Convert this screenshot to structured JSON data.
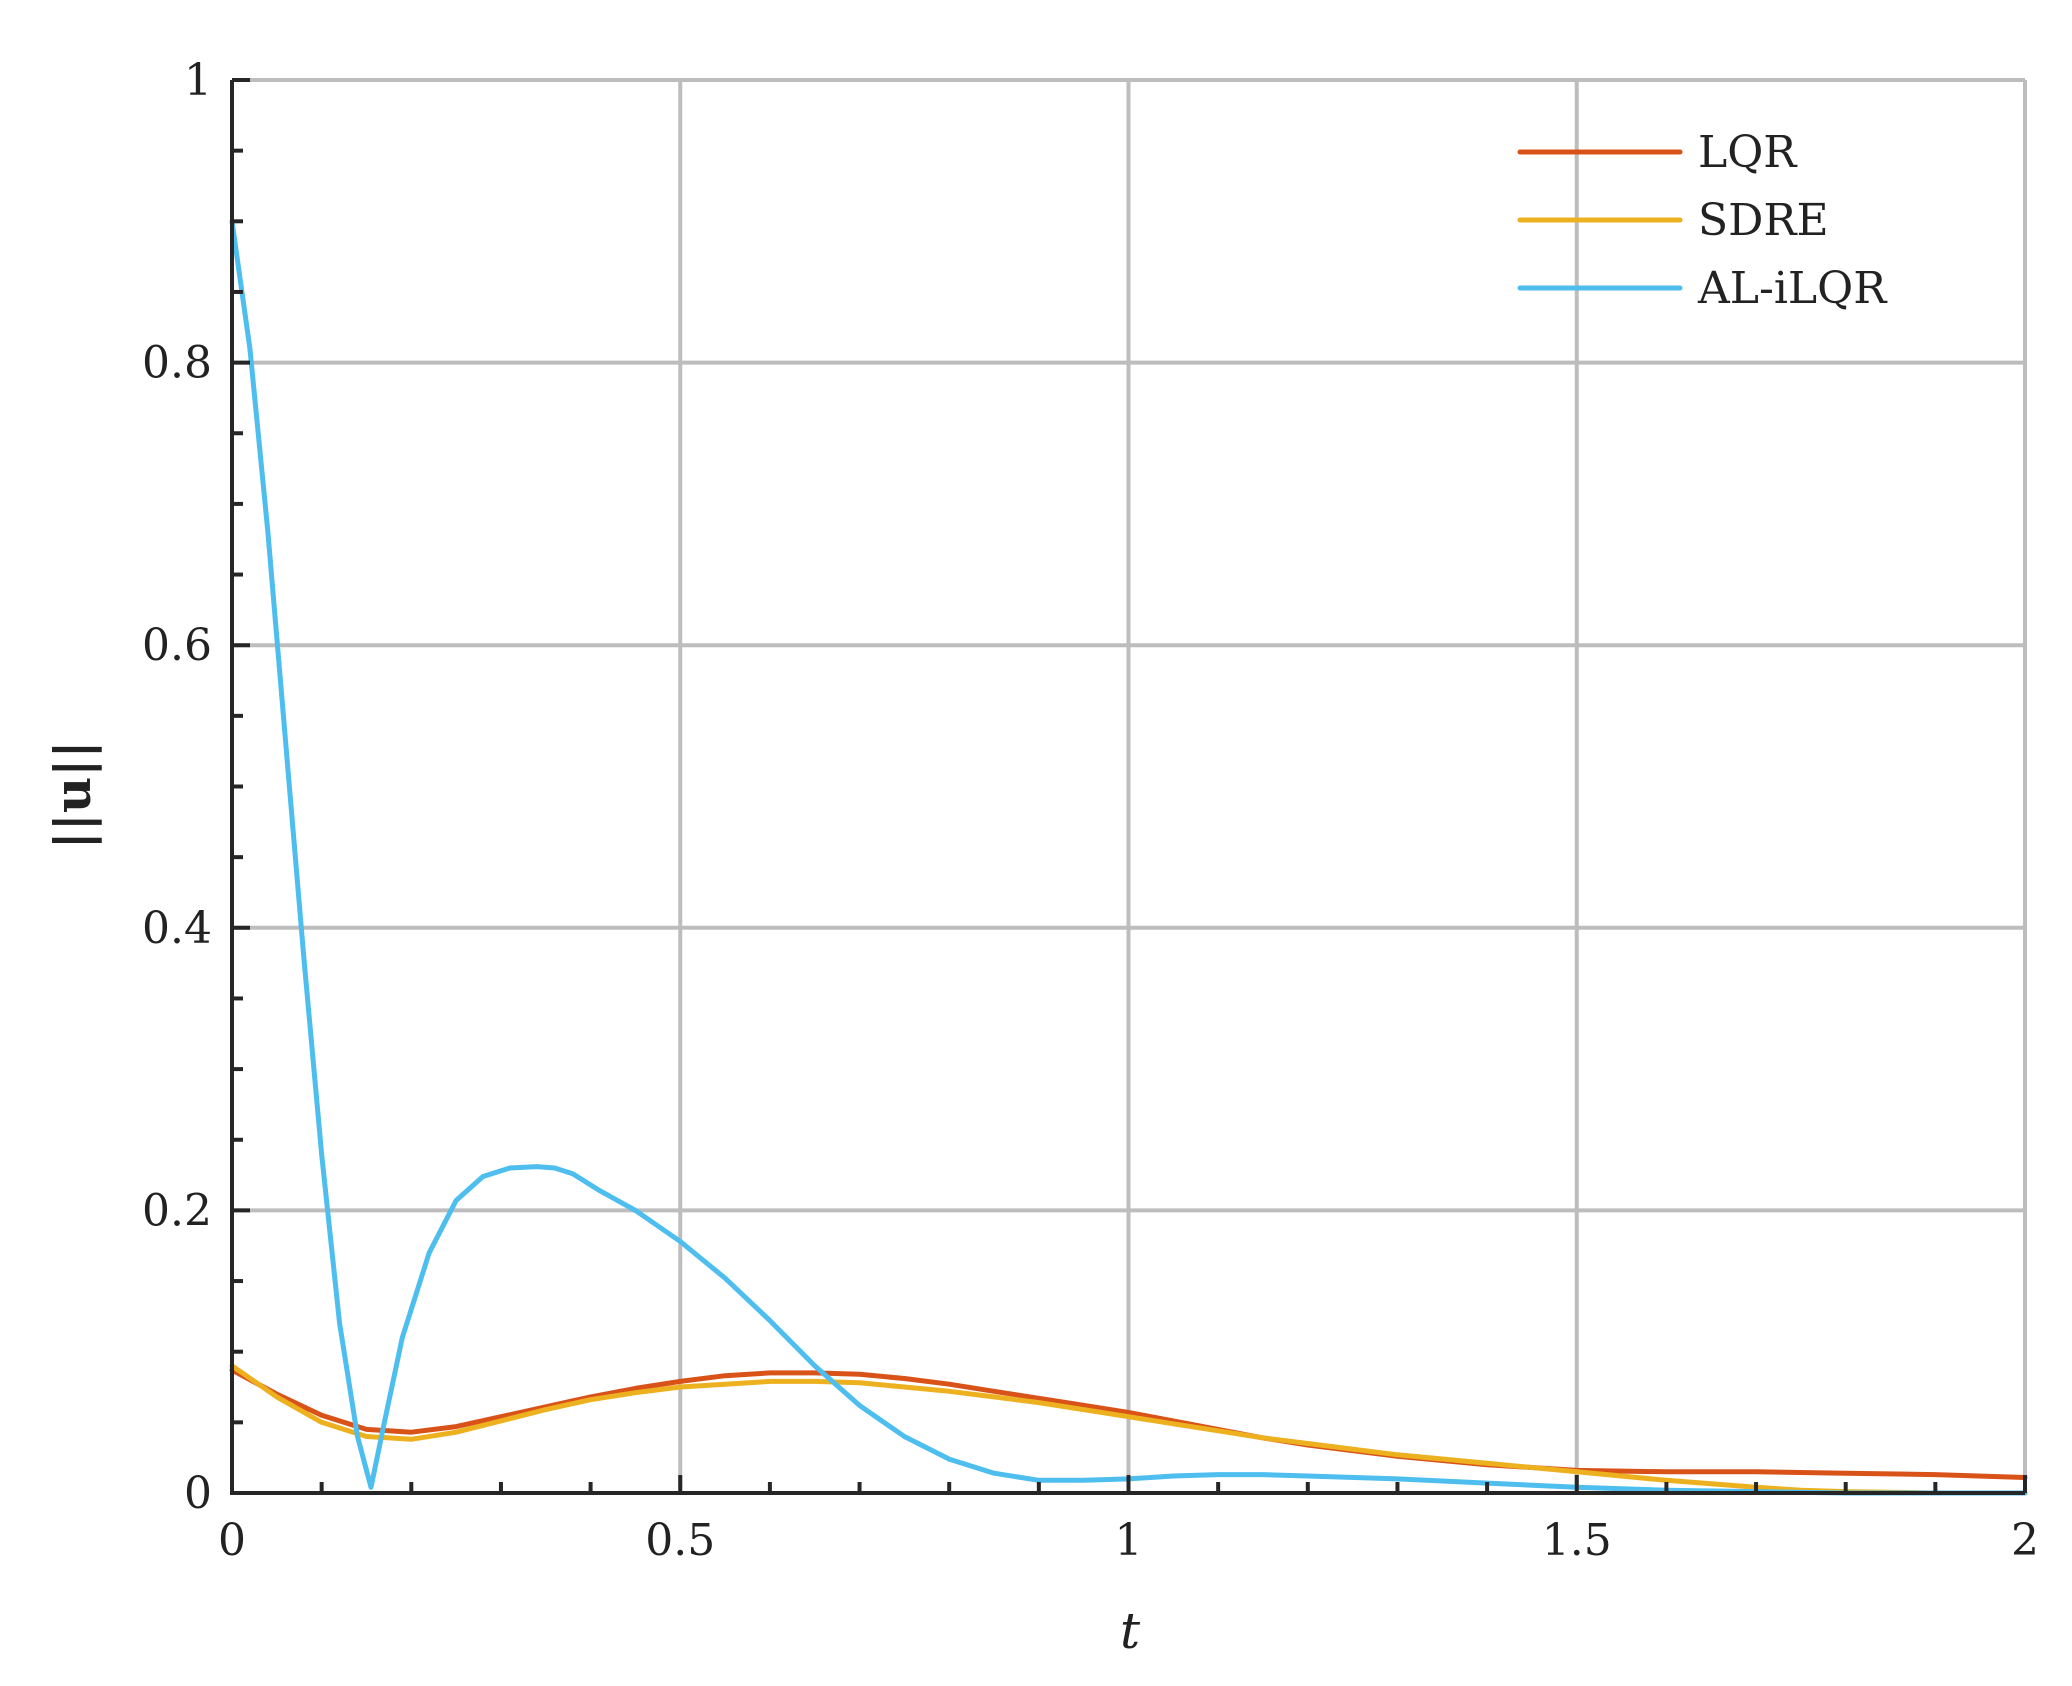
{
  "chart_data": {
    "type": "line",
    "title": "",
    "xlabel": "t",
    "ylabel": "||u||",
    "xlim": [
      0,
      2
    ],
    "ylim": [
      0,
      1
    ],
    "xticks": [
      0,
      0.5,
      1,
      1.5,
      2
    ],
    "xtick_labels": [
      "0",
      "0.5",
      "1",
      "1.5",
      "2"
    ],
    "yticks": [
      0,
      0.2,
      0.4,
      0.6,
      0.8,
      1
    ],
    "ytick_labels": [
      "0",
      "0.2",
      "0.4",
      "0.6",
      "0.8",
      "1"
    ],
    "grid": true,
    "legend_position": "top-right",
    "series": [
      {
        "name": "LQR",
        "color": "#d95319",
        "x": [
          0,
          0.05,
          0.1,
          0.15,
          0.2,
          0.25,
          0.3,
          0.35,
          0.4,
          0.45,
          0.5,
          0.55,
          0.6,
          0.65,
          0.7,
          0.75,
          0.8,
          0.85,
          0.9,
          0.95,
          1.0,
          1.05,
          1.1,
          1.15,
          1.2,
          1.3,
          1.4,
          1.5,
          1.6,
          1.7,
          1.8,
          1.9,
          2.0
        ],
        "y": [
          0.087,
          0.07,
          0.055,
          0.045,
          0.043,
          0.047,
          0.054,
          0.061,
          0.068,
          0.074,
          0.079,
          0.083,
          0.085,
          0.085,
          0.084,
          0.081,
          0.077,
          0.072,
          0.067,
          0.062,
          0.057,
          0.051,
          0.045,
          0.039,
          0.034,
          0.026,
          0.02,
          0.016,
          0.015,
          0.015,
          0.014,
          0.013,
          0.011
        ]
      },
      {
        "name": "SDRE",
        "color": "#edb120",
        "x": [
          0,
          0.05,
          0.1,
          0.15,
          0.2,
          0.25,
          0.3,
          0.35,
          0.4,
          0.45,
          0.5,
          0.55,
          0.6,
          0.65,
          0.7,
          0.75,
          0.8,
          0.85,
          0.9,
          0.95,
          1.0,
          1.05,
          1.1,
          1.15,
          1.2,
          1.3,
          1.4,
          1.5,
          1.6,
          1.7,
          1.75,
          1.8,
          1.9,
          2.0
        ],
        "y": [
          0.09,
          0.068,
          0.05,
          0.04,
          0.038,
          0.043,
          0.051,
          0.059,
          0.066,
          0.071,
          0.075,
          0.077,
          0.079,
          0.079,
          0.078,
          0.075,
          0.072,
          0.068,
          0.064,
          0.059,
          0.054,
          0.049,
          0.044,
          0.039,
          0.035,
          0.027,
          0.021,
          0.015,
          0.009,
          0.004,
          0.002,
          0.001,
          0.0,
          0.0
        ]
      },
      {
        "name": "AL-iLQR",
        "color": "#4dbeee",
        "x": [
          0,
          0.02,
          0.04,
          0.06,
          0.08,
          0.1,
          0.12,
          0.14,
          0.155,
          0.17,
          0.19,
          0.22,
          0.25,
          0.28,
          0.31,
          0.34,
          0.36,
          0.38,
          0.41,
          0.45,
          0.5,
          0.55,
          0.6,
          0.65,
          0.7,
          0.75,
          0.8,
          0.85,
          0.9,
          0.95,
          1.0,
          1.05,
          1.1,
          1.15,
          1.2,
          1.3,
          1.4,
          1.5,
          1.6,
          1.7,
          1.8,
          1.9,
          2.0
        ],
        "y": [
          0.9,
          0.81,
          0.68,
          0.53,
          0.38,
          0.24,
          0.12,
          0.04,
          0.004,
          0.05,
          0.11,
          0.17,
          0.207,
          0.224,
          0.23,
          0.231,
          0.23,
          0.226,
          0.214,
          0.2,
          0.178,
          0.152,
          0.122,
          0.09,
          0.062,
          0.04,
          0.024,
          0.014,
          0.009,
          0.009,
          0.01,
          0.012,
          0.013,
          0.013,
          0.012,
          0.01,
          0.007,
          0.004,
          0.002,
          0.001,
          0.0,
          0.0,
          0.0
        ]
      }
    ]
  }
}
